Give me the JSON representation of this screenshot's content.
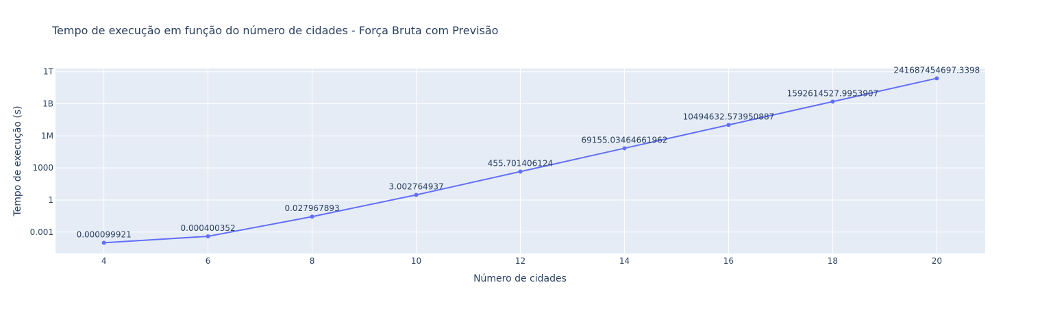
{
  "chart_data": {
    "type": "line",
    "title": "Tempo de execução em função do número de cidades - Força Bruta com Previsão",
    "xlabel": "Número de cidades",
    "ylabel": "Tempo de execução (s)",
    "y_scale": "log",
    "x_ticks": [
      "4",
      "6",
      "8",
      "10",
      "12",
      "14",
      "16",
      "18",
      "20"
    ],
    "y_ticks": [
      {
        "value": 0.001,
        "label": "0.001"
      },
      {
        "value": 1,
        "label": "1"
      },
      {
        "value": 1000,
        "label": "1000"
      },
      {
        "value": 1000000,
        "label": "1M"
      },
      {
        "value": 1000000000,
        "label": "1B"
      },
      {
        "value": 1000000000000,
        "label": "1T"
      }
    ],
    "xlim": [
      3.07,
      20.93
    ],
    "ylim": [
      1e-05,
      2000000000000
    ],
    "grid": true,
    "colors": {
      "line": "#636efa",
      "plot_background": "#e5ecf6",
      "text": "#2a3f5f"
    },
    "series": [
      {
        "x": [
          4,
          6,
          8,
          10,
          12,
          14,
          16,
          18,
          20
        ],
        "y": [
          9.9921e-05,
          0.000400352,
          0.027967893,
          3.002764937,
          455.701406124,
          69155.03464661962,
          10494632.573950887,
          1592614527.9953907,
          241687454697.3398
        ],
        "labels": [
          "0.000099921",
          "0.000400352",
          "0.027967893",
          "3.002764937",
          "455.701406124",
          "69155.03464661962",
          "10494632.573950887",
          "1592614527.9953907",
          "241687454697.3398"
        ]
      }
    ]
  }
}
